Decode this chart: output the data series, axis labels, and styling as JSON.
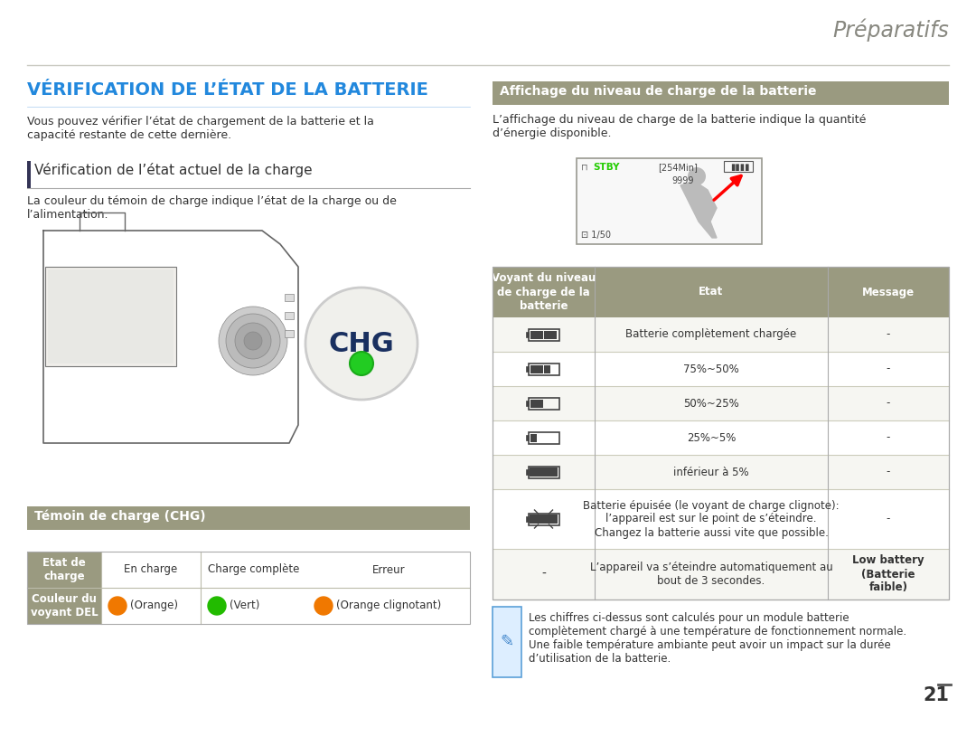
{
  "bg_color": "#ffffff",
  "title_header": "Préparatifs",
  "section1_title": "VÉRIFICATION DE L’ÉTAT DE LA BATTERIE",
  "section1_body": "Vous pouvez vérifier l’état de chargement de la batterie et la\ncapacité restante de cette dernière.",
  "subsection1_title": "Vérification de l’état actuel de la charge",
  "subsection1_body": "La couleur du témoin de charge indique l’état de la charge ou de\nl’alimentation.",
  "section2_title": "Affichage du niveau de charge de la batterie",
  "section2_body": "L’affichage du niveau de charge de la batterie indique la quantité\nd’énergie disponible.",
  "chg_section_title": "Témoin de charge (CHG)",
  "table1_headers": [
    "Etat de\ncharge",
    "En charge",
    "Charge complète",
    "Erreur"
  ],
  "table1_row2_label": "Couleur du\nvoyant DEL",
  "table1_row2_vals": [
    "(Orange)",
    "(Vert)",
    "(Orange clignotant)"
  ],
  "table1_row2_colors": [
    "#f07800",
    "#22bb00",
    "#f07800"
  ],
  "table2_headers": [
    "Voyant du niveau\nde charge de la\nbatterie",
    "Etat",
    "Message"
  ],
  "table2_row_states": [
    "Batterie complètement chargée",
    "75%~50%",
    "50%~25%",
    "25%~5%",
    "inférieur à 5%",
    "Batterie épuisée (le voyant de charge clignote):\nl’appareil est sur le point de s’éteindre.\nChangez la batterie aussi vite que possible.",
    "L’appareil va s’éteindre automatiquement au\nbout de 3 secondes."
  ],
  "table2_row_messages": [
    "-",
    "-",
    "-",
    "-",
    "-",
    "-",
    "Low battery\n(Batterie\nfaible)"
  ],
  "table2_bat_bars": [
    4,
    3,
    2,
    1,
    0,
    -1,
    -2
  ],
  "note_text": "Les chiffres ci-dessus sont calculés pour un module batterie\ncomplètement chargé à une température de fonctionnement normale.\nUne faible température ambiante peut avoir un impact sur la durée\nd’utilisation de la batterie.",
  "page_number": "21",
  "header_bg": "#9a9a80",
  "row_div_color": "#ccccbb",
  "table_border_color": "#aaaaaa",
  "note_border_color": "#5ba0d8",
  "note_bg": "#ddeeff",
  "section1_title_color": "#2288dd",
  "text_color": "#333333",
  "white": "#ffffff",
  "subsection_bar_color": "#555588"
}
